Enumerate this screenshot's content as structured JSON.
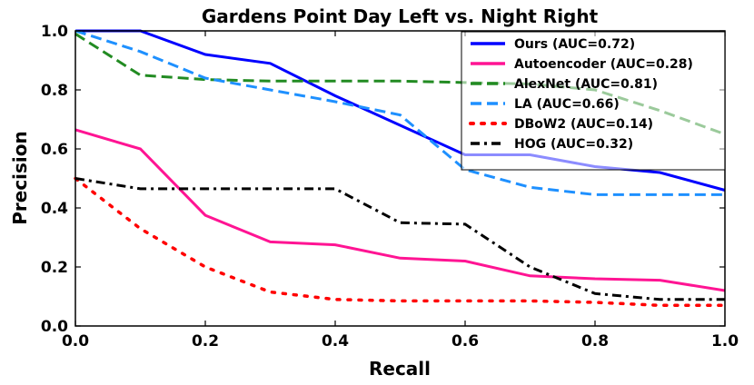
{
  "chart_data": {
    "type": "line",
    "title": "Gardens Point Day Left vs. Night Right",
    "xlabel": "Recall",
    "ylabel": "Precision",
    "xlim": [
      0.0,
      1.0
    ],
    "ylim": [
      0.0,
      1.0
    ],
    "xticks": [
      "0.0",
      "0.2",
      "0.4",
      "0.6",
      "0.8",
      "1.0"
    ],
    "yticks": [
      "0.0",
      "0.2",
      "0.4",
      "0.6",
      "0.8",
      "1.0"
    ],
    "grid": false,
    "legend_position": "top-right",
    "series": [
      {
        "name": "Ours (AUC=0.72)",
        "color": "#0000ff",
        "linestyle": "solid",
        "x": [
          0.0,
          0.1,
          0.2,
          0.3,
          0.4,
          0.5,
          0.6,
          0.7,
          0.8,
          0.9,
          1.0
        ],
        "y": [
          1.0,
          1.0,
          0.92,
          0.89,
          0.78,
          0.68,
          0.58,
          0.58,
          0.54,
          0.52,
          0.46
        ]
      },
      {
        "name": "Autoencoder (AUC=0.28)",
        "color": "#ff1493",
        "linestyle": "solid",
        "x": [
          0.0,
          0.1,
          0.2,
          0.3,
          0.4,
          0.5,
          0.6,
          0.7,
          0.8,
          0.9,
          1.0
        ],
        "y": [
          0.665,
          0.6,
          0.375,
          0.285,
          0.275,
          0.23,
          0.22,
          0.17,
          0.16,
          0.155,
          0.12
        ]
      },
      {
        "name": "AlexNet (AUC=0.81)",
        "color": "#228b22",
        "linestyle": "dashed",
        "x": [
          0.0,
          0.1,
          0.2,
          0.3,
          0.4,
          0.5,
          0.6,
          0.7,
          0.8,
          0.9,
          1.0
        ],
        "y": [
          0.99,
          0.85,
          0.835,
          0.83,
          0.83,
          0.83,
          0.825,
          0.82,
          0.8,
          0.73,
          0.65
        ]
      },
      {
        "name": "LA (AUC=0.66)",
        "color": "#1e90ff",
        "linestyle": "dashed",
        "x": [
          0.0,
          0.1,
          0.2,
          0.3,
          0.4,
          0.5,
          0.6,
          0.7,
          0.8,
          0.9,
          1.0
        ],
        "y": [
          1.0,
          0.93,
          0.84,
          0.8,
          0.76,
          0.715,
          0.53,
          0.47,
          0.445,
          0.445,
          0.445
        ]
      },
      {
        "name": "DBoW2 (AUC=0.14)",
        "color": "#ff0000",
        "linestyle": "dotted",
        "x": [
          0.0,
          0.1,
          0.2,
          0.3,
          0.4,
          0.5,
          0.6,
          0.7,
          0.8,
          0.9,
          1.0
        ],
        "y": [
          0.5,
          0.33,
          0.2,
          0.115,
          0.09,
          0.085,
          0.085,
          0.085,
          0.08,
          0.07,
          0.07
        ]
      },
      {
        "name": "HOG (AUC=0.32)",
        "color": "#000000",
        "linestyle": "dashdot",
        "x": [
          0.0,
          0.1,
          0.2,
          0.3,
          0.4,
          0.5,
          0.6,
          0.7,
          0.8,
          0.9,
          1.0
        ],
        "y": [
          0.5,
          0.465,
          0.465,
          0.465,
          0.465,
          0.35,
          0.345,
          0.2,
          0.11,
          0.09,
          0.09
        ]
      }
    ]
  }
}
